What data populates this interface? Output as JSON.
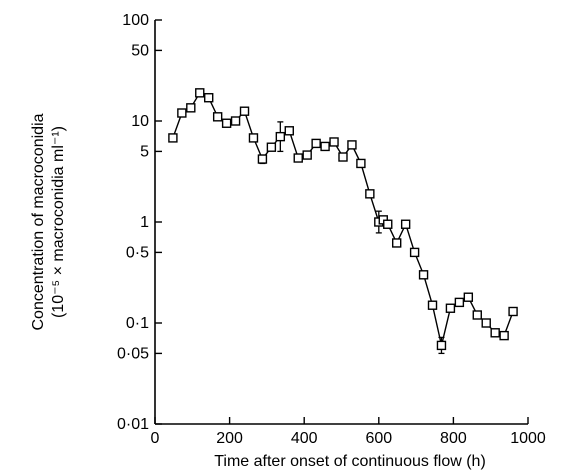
{
  "chart_data": {
    "type": "line",
    "xlabel": "Time after onset of continuous flow (h)",
    "ylabel_line1": "Concentration of macroconidia",
    "ylabel_line2": "(10⁻⁵ × macroconidia ml⁻¹)",
    "xlim": [
      0,
      1000
    ],
    "ylim": [
      0.01,
      100
    ],
    "yscale": "log",
    "grid": false,
    "x_ticks": [
      {
        "value": 0,
        "label": "0"
      },
      {
        "value": 200,
        "label": "200"
      },
      {
        "value": 400,
        "label": "400"
      },
      {
        "value": 600,
        "label": "600"
      },
      {
        "value": 800,
        "label": "800"
      },
      {
        "value": 1000,
        "label": "1000"
      }
    ],
    "y_ticks": [
      {
        "value": 100,
        "label": "100"
      },
      {
        "value": 50,
        "label": "50"
      },
      {
        "value": 10,
        "label": "10"
      },
      {
        "value": 5,
        "label": "5"
      },
      {
        "value": 1,
        "label": "1"
      },
      {
        "value": 0.5,
        "label": "0·5"
      },
      {
        "value": 0.1,
        "label": "0·1"
      },
      {
        "value": 0.05,
        "label": "0·05"
      },
      {
        "value": 0.01,
        "label": "0·01"
      }
    ],
    "series": [
      {
        "marker": "open-square",
        "x": [
          48,
          72,
          96,
          120,
          144,
          168,
          192,
          216,
          240,
          264,
          288,
          312,
          336,
          360,
          384,
          408,
          432,
          456,
          480,
          504,
          528,
          552,
          576,
          600,
          612,
          624,
          648,
          672,
          696,
          720,
          744,
          768,
          792,
          816,
          840,
          864,
          888,
          912,
          936,
          960
        ],
        "y": [
          6.8,
          12,
          13.5,
          19,
          17,
          11,
          9.5,
          10,
          12.5,
          6.8,
          4.2,
          5.5,
          7,
          8,
          4.3,
          4.6,
          6,
          5.6,
          6.2,
          4.4,
          5.8,
          3.8,
          1.9,
          1.0,
          1.05,
          0.95,
          0.62,
          0.95,
          0.5,
          0.3,
          0.15,
          0.06,
          0.14,
          0.16,
          0.18,
          0.12,
          0.1,
          0.08,
          0.075,
          0.13
        ],
        "err_low": [
          null,
          null,
          null,
          null,
          null,
          null,
          null,
          null,
          null,
          null,
          3.8,
          null,
          5,
          null,
          null,
          null,
          null,
          null,
          null,
          null,
          null,
          null,
          null,
          0.78,
          null,
          null,
          null,
          null,
          null,
          null,
          null,
          0.05,
          null,
          null,
          null,
          null,
          null,
          null,
          null,
          null
        ],
        "err_high": [
          null,
          null,
          null,
          null,
          null,
          null,
          null,
          null,
          null,
          null,
          4.6,
          null,
          9.8,
          null,
          null,
          null,
          null,
          null,
          null,
          null,
          null,
          null,
          null,
          1.28,
          null,
          null,
          null,
          null,
          null,
          null,
          null,
          0.072,
          null,
          null,
          null,
          null,
          null,
          null,
          null,
          null
        ]
      }
    ]
  }
}
